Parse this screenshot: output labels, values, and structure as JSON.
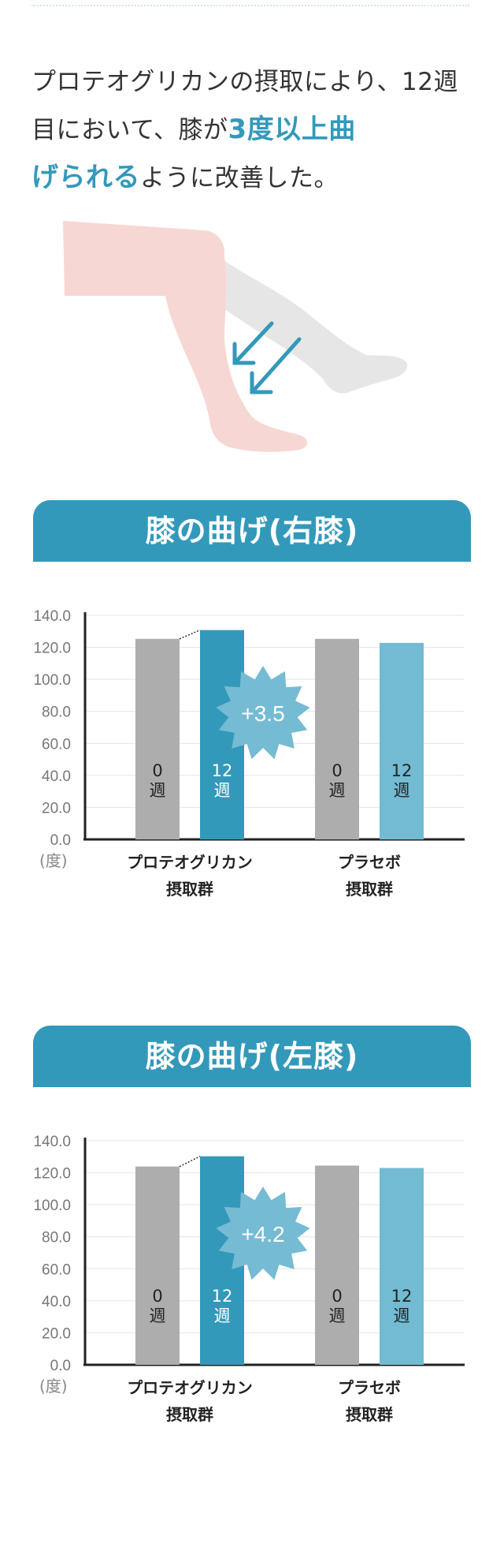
{
  "headline": {
    "part1": "プロテオグリカンの摂取により、12週目において、膝が",
    "highlight1": "3度以上曲",
    "highlight2": "げられる",
    "part2": "ように改善した。"
  },
  "colors": {
    "accent": "#3399bb",
    "bar_gray": "#adadad",
    "bar_dark_blue": "#3399bb",
    "bar_light_blue": "#72bbd3",
    "badge": "#76bbd4",
    "leg_skin": "#f7d7d3",
    "leg_shadow": "#e6e6e6"
  },
  "icons": {
    "illustration": "bent-leg-illustration",
    "arrows": "down-left-arrow-icon"
  },
  "chart_data": [
    {
      "type": "bar",
      "title": "膝の曲げ(右膝)",
      "unit": "(度)",
      "ylim": [
        0,
        140
      ],
      "yticks": [
        "140.0",
        "120.0",
        "100.0",
        "80.0",
        "60.0",
        "40.0",
        "20.0",
        "0.0"
      ],
      "grid": true,
      "groups": [
        {
          "label1": "プロテオグリカン",
          "label2": "摂取群",
          "bars": [
            {
              "week_line1": "0",
              "week_line2": "週",
              "value": 125.3
            },
            {
              "week_line1": "12",
              "week_line2": "週",
              "value": 130.8
            }
          ]
        },
        {
          "label1": "プラセボ",
          "label2": "摂取群",
          "bars": [
            {
              "week_line1": "0",
              "week_line2": "週",
              "value": 125.3
            },
            {
              "week_line1": "12",
              "week_line2": "週",
              "value": 122.8
            }
          ]
        }
      ],
      "badge": "+3.5"
    },
    {
      "type": "bar",
      "title": "膝の曲げ(左膝)",
      "unit": "(度)",
      "ylim": [
        0,
        140
      ],
      "yticks": [
        "140.0",
        "120.0",
        "100.0",
        "80.0",
        "60.0",
        "40.0",
        "20.0",
        "0.0"
      ],
      "grid": true,
      "groups": [
        {
          "label1": "プロテオグリカン",
          "label2": "摂取群",
          "bars": [
            {
              "week_line1": "0",
              "week_line2": "週",
              "value": 123.9
            },
            {
              "week_line1": "12",
              "week_line2": "週",
              "value": 130.3
            }
          ]
        },
        {
          "label1": "プラセボ",
          "label2": "摂取群",
          "bars": [
            {
              "week_line1": "0",
              "week_line2": "週",
              "value": 124.5
            },
            {
              "week_line1": "12",
              "week_line2": "週",
              "value": 123.0
            }
          ]
        }
      ],
      "badge": "+4.2"
    }
  ]
}
